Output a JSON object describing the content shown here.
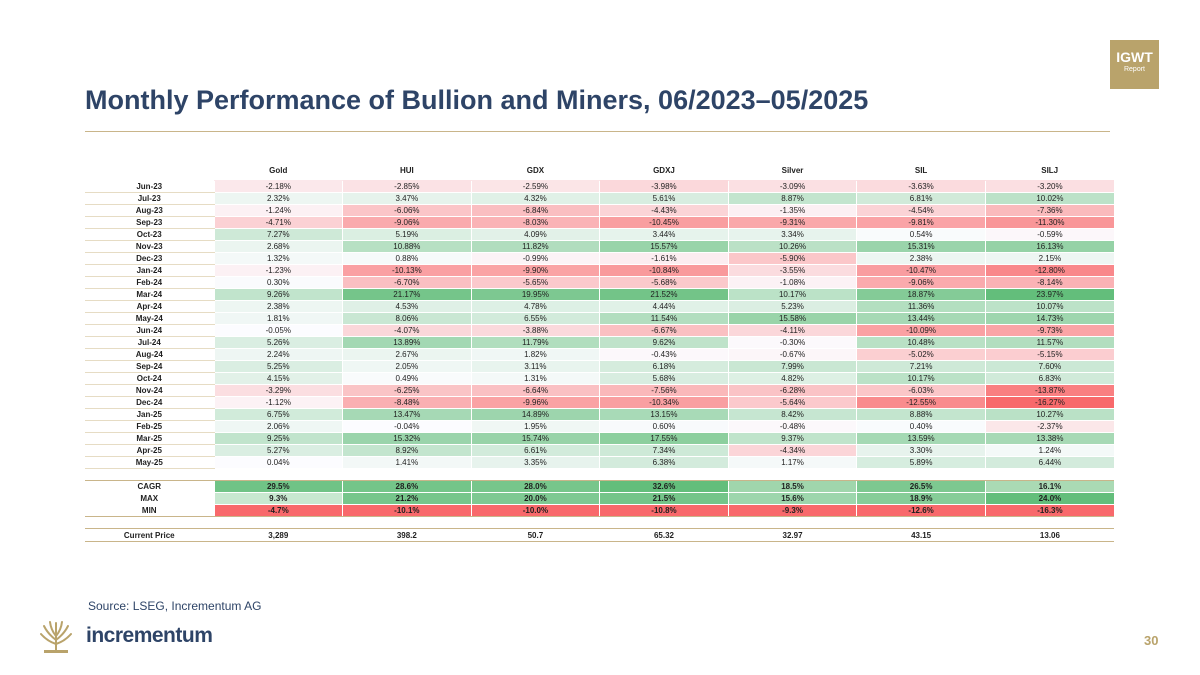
{
  "badge": {
    "line1": "IGWT",
    "line2": "Report"
  },
  "title": "Monthly Performance of Bullion and Miners, 06/2023–05/2025",
  "columns": [
    "Gold",
    "HUI",
    "GDX",
    "GDXJ",
    "Silver",
    "SIL",
    "SILJ"
  ],
  "months": [
    {
      "label": "Jun-23",
      "values": [
        "-2.18%",
        "-2.85%",
        "-2.59%",
        "-3.98%",
        "-3.09%",
        "-3.63%",
        "-3.20%"
      ]
    },
    {
      "label": "Jul-23",
      "values": [
        "2.32%",
        "3.47%",
        "4.32%",
        "5.61%",
        "8.87%",
        "6.81%",
        "10.02%"
      ]
    },
    {
      "label": "Aug-23",
      "values": [
        "-1.24%",
        "-6.06%",
        "-6.84%",
        "-4.43%",
        "-1.35%",
        "-4.54%",
        "-7.36%"
      ]
    },
    {
      "label": "Sep-23",
      "values": [
        "-4.71%",
        "-9.06%",
        "-8.03%",
        "-10.45%",
        "-9.31%",
        "-9.81%",
        "-11.30%"
      ]
    },
    {
      "label": "Oct-23",
      "values": [
        "7.27%",
        "5.19%",
        "4.09%",
        "3.44%",
        "3.34%",
        "0.54%",
        "-0.59%"
      ]
    },
    {
      "label": "Nov-23",
      "values": [
        "2.68%",
        "10.88%",
        "11.82%",
        "15.57%",
        "10.26%",
        "15.31%",
        "16.13%"
      ]
    },
    {
      "label": "Dec-23",
      "values": [
        "1.32%",
        "0.88%",
        "-0.99%",
        "-1.61%",
        "-5.90%",
        "2.38%",
        "2.15%"
      ]
    },
    {
      "label": "Jan-24",
      "values": [
        "-1.23%",
        "-10.13%",
        "-9.90%",
        "-10.84%",
        "-3.55%",
        "-10.47%",
        "-12.80%"
      ]
    },
    {
      "label": "Feb-24",
      "values": [
        "0.30%",
        "-6.70%",
        "-5.65%",
        "-5.68%",
        "-1.08%",
        "-9.06%",
        "-8.14%"
      ]
    },
    {
      "label": "Mar-24",
      "values": [
        "9.26%",
        "21.17%",
        "19.95%",
        "21.52%",
        "10.17%",
        "18.87%",
        "23.97%"
      ]
    },
    {
      "label": "Apr-24",
      "values": [
        "2.38%",
        "4.53%",
        "4.78%",
        "4.44%",
        "5.23%",
        "11.36%",
        "10.07%"
      ]
    },
    {
      "label": "May-24",
      "values": [
        "1.81%",
        "8.06%",
        "6.55%",
        "11.54%",
        "15.58%",
        "13.44%",
        "14.73%"
      ]
    },
    {
      "label": "Jun-24",
      "values": [
        "-0.05%",
        "-4.07%",
        "-3.88%",
        "-6.67%",
        "-4.11%",
        "-10.09%",
        "-9.73%"
      ]
    },
    {
      "label": "Jul-24",
      "values": [
        "5.26%",
        "13.89%",
        "11.79%",
        "9.62%",
        "-0.30%",
        "10.48%",
        "11.57%"
      ]
    },
    {
      "label": "Aug-24",
      "values": [
        "2.24%",
        "2.67%",
        "1.82%",
        "-0.43%",
        "-0.67%",
        "-5.02%",
        "-5.15%"
      ]
    },
    {
      "label": "Sep-24",
      "values": [
        "5.25%",
        "2.05%",
        "3.11%",
        "6.18%",
        "7.99%",
        "7.21%",
        "7.60%"
      ]
    },
    {
      "label": "Oct-24",
      "values": [
        "4.15%",
        "0.49%",
        "1.31%",
        "5.68%",
        "4.82%",
        "10.17%",
        "6.83%"
      ]
    },
    {
      "label": "Nov-24",
      "values": [
        "-3.29%",
        "-6.25%",
        "-6.64%",
        "-7.56%",
        "-6.28%",
        "-6.03%",
        "-13.87%"
      ]
    },
    {
      "label": "Dec-24",
      "values": [
        "-1.12%",
        "-8.48%",
        "-9.96%",
        "-10.34%",
        "-5.64%",
        "-12.55%",
        "-16.27%"
      ]
    },
    {
      "label": "Jan-25",
      "values": [
        "6.75%",
        "13.47%",
        "14.89%",
        "13.15%",
        "8.42%",
        "8.88%",
        "10.27%"
      ]
    },
    {
      "label": "Feb-25",
      "values": [
        "2.06%",
        "-0.04%",
        "1.95%",
        "0.60%",
        "-0.48%",
        "0.40%",
        "-2.37%"
      ]
    },
    {
      "label": "Mar-25",
      "values": [
        "9.25%",
        "15.32%",
        "15.74%",
        "17.55%",
        "9.37%",
        "13.59%",
        "13.38%"
      ]
    },
    {
      "label": "Apr-25",
      "values": [
        "5.27%",
        "8.92%",
        "6.61%",
        "7.34%",
        "-4.34%",
        "3.30%",
        "1.24%"
      ]
    },
    {
      "label": "May-25",
      "values": [
        "0.04%",
        "1.41%",
        "3.35%",
        "6.38%",
        "1.17%",
        "5.89%",
        "6.44%"
      ]
    }
  ],
  "stats": [
    {
      "label": "CAGR",
      "values": [
        "29.5%",
        "28.6%",
        "28.0%",
        "32.6%",
        "18.5%",
        "26.5%",
        "16.1%"
      ]
    },
    {
      "label": "MAX",
      "values": [
        "9.3%",
        "21.2%",
        "20.0%",
        "21.5%",
        "15.6%",
        "18.9%",
        "24.0%"
      ]
    },
    {
      "label": "MIN",
      "values": [
        "-4.7%",
        "-10.1%",
        "-10.0%",
        "-10.8%",
        "-9.3%",
        "-12.6%",
        "-16.3%"
      ]
    }
  ],
  "price": {
    "label": "Current Price",
    "values": [
      "3,289",
      "398.2",
      "50.7",
      "65.32",
      "32.97",
      "43.15",
      "13.06"
    ]
  },
  "source": "Source: LSEG, Incrementum AG",
  "brand": "incrementum",
  "page_number": "30",
  "colors": {
    "title": "#2e4467",
    "gold": "#b9a36b",
    "positive": "#63be7b",
    "negative": "#f8696b"
  }
}
